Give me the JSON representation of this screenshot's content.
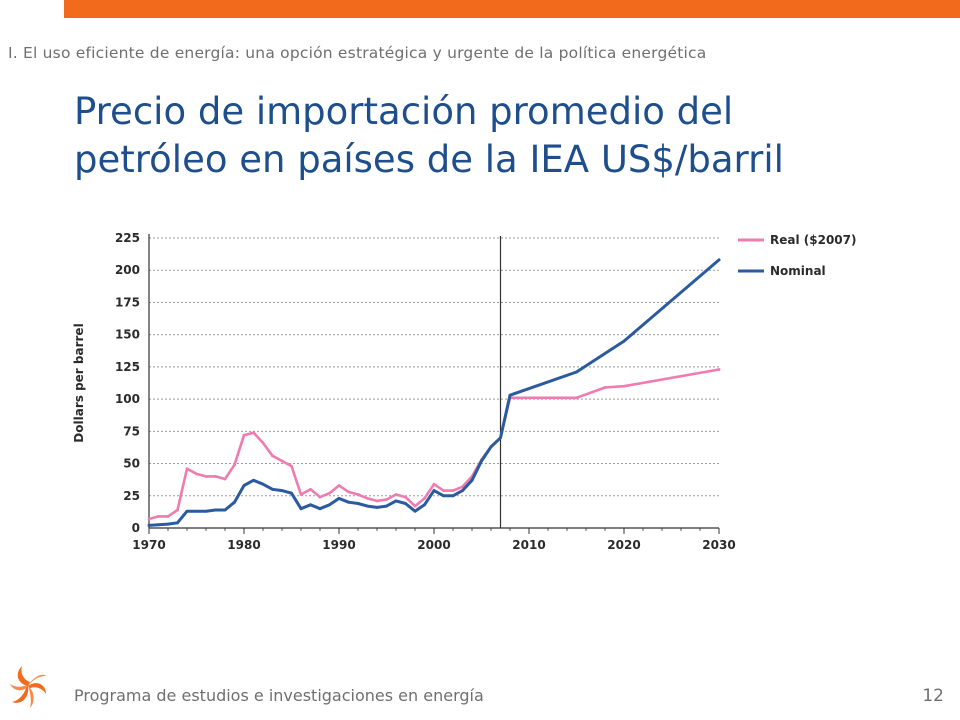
{
  "header": {
    "section": "I. El uso eficiente de energía: una opción estratégica y urgente de la política energética",
    "accent_color": "#f26b1d"
  },
  "title": {
    "line1": "Precio de importación promedio del",
    "line2": "petróleo en países de la IEA US$/barril",
    "color": "#1f4e8c"
  },
  "footer": {
    "program": "Programa de estudios e investigaciones en energía",
    "page_number": "12",
    "logo_icon": "orange-swirl-logo-icon"
  },
  "chart_data": {
    "type": "line",
    "title": "",
    "xlabel": "",
    "ylabel": "Dollars per barrel",
    "xlim": [
      1970,
      2030
    ],
    "ylim": [
      0,
      225
    ],
    "x_ticks": [
      "1970",
      "1980",
      "1990",
      "2000",
      "2010",
      "2020",
      "2030"
    ],
    "y_ticks": [
      "0",
      "25",
      "50",
      "75",
      "100",
      "125",
      "150",
      "175",
      "200",
      "225"
    ],
    "grid": "horizontal dashed",
    "legend_position": "top-right",
    "projection_divider_x": 2007,
    "series": [
      {
        "name": "Real ($2007)",
        "color": "#f07bb0",
        "points": [
          [
            1970,
            7
          ],
          [
            1971,
            9
          ],
          [
            1972,
            9
          ],
          [
            1973,
            14
          ],
          [
            1974,
            46
          ],
          [
            1975,
            42
          ],
          [
            1976,
            40
          ],
          [
            1977,
            40
          ],
          [
            1978,
            38
          ],
          [
            1979,
            49
          ],
          [
            1980,
            72
          ],
          [
            1981,
            74
          ],
          [
            1982,
            66
          ],
          [
            1983,
            56
          ],
          [
            1984,
            52
          ],
          [
            1985,
            48
          ],
          [
            1986,
            26
          ],
          [
            1987,
            30
          ],
          [
            1988,
            24
          ],
          [
            1989,
            27
          ],
          [
            1990,
            33
          ],
          [
            1991,
            28
          ],
          [
            1992,
            26
          ],
          [
            1993,
            23
          ],
          [
            1994,
            21
          ],
          [
            1995,
            22
          ],
          [
            1996,
            26
          ],
          [
            1997,
            24
          ],
          [
            1998,
            17
          ],
          [
            1999,
            23
          ],
          [
            2000,
            34
          ],
          [
            2001,
            29
          ],
          [
            2002,
            29
          ],
          [
            2003,
            32
          ],
          [
            2004,
            40
          ],
          [
            2005,
            53
          ],
          [
            2006,
            63
          ],
          [
            2007,
            70
          ],
          [
            2008,
            101
          ],
          [
            2015,
            101
          ],
          [
            2018,
            109
          ],
          [
            2020,
            110
          ],
          [
            2030,
            123
          ]
        ]
      },
      {
        "name": "Nominal",
        "color": "#2a5aa0",
        "points": [
          [
            1970,
            2
          ],
          [
            1971,
            2.5
          ],
          [
            1972,
            3
          ],
          [
            1973,
            4
          ],
          [
            1974,
            13
          ],
          [
            1975,
            13
          ],
          [
            1976,
            13
          ],
          [
            1977,
            14
          ],
          [
            1978,
            14
          ],
          [
            1979,
            20
          ],
          [
            1980,
            33
          ],
          [
            1981,
            37
          ],
          [
            1982,
            34
          ],
          [
            1983,
            30
          ],
          [
            1984,
            29
          ],
          [
            1985,
            27
          ],
          [
            1986,
            15
          ],
          [
            1987,
            18
          ],
          [
            1988,
            15
          ],
          [
            1989,
            18
          ],
          [
            1990,
            23
          ],
          [
            1991,
            20
          ],
          [
            1992,
            19
          ],
          [
            1993,
            17
          ],
          [
            1994,
            16
          ],
          [
            1995,
            17
          ],
          [
            1996,
            21
          ],
          [
            1997,
            19
          ],
          [
            1998,
            13
          ],
          [
            1999,
            18
          ],
          [
            2000,
            29
          ],
          [
            2001,
            25
          ],
          [
            2002,
            25
          ],
          [
            2003,
            29
          ],
          [
            2004,
            37
          ],
          [
            2005,
            52
          ],
          [
            2006,
            63
          ],
          [
            2007,
            70
          ],
          [
            2008,
            103
          ],
          [
            2015,
            121
          ],
          [
            2020,
            145
          ],
          [
            2030,
            208
          ]
        ]
      }
    ]
  }
}
